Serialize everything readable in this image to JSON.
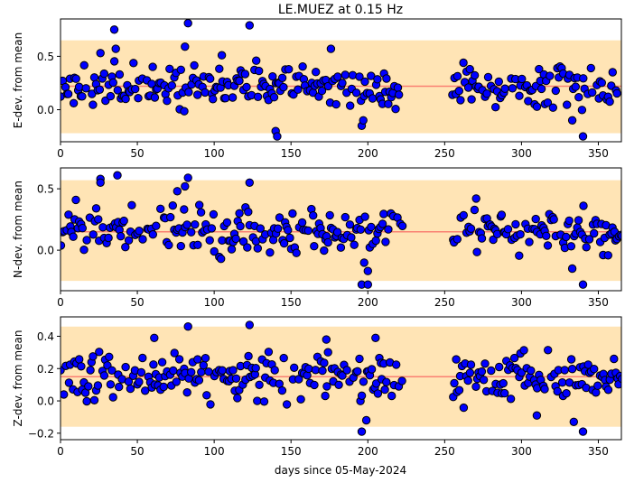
{
  "figure": {
    "title": "LE.MUEZ at 0.15 Hz",
    "xlabel": "days since 05-May-2024"
  },
  "colors": {
    "band": "#ffe4b5",
    "mean_line": "#fa8072",
    "point_fill": "#0000ff",
    "point_edge": "#000000"
  },
  "chart_data": [
    {
      "type": "scatter",
      "ylabel": "E-dev. from mean",
      "xlim": [
        0,
        365
      ],
      "ylim": [
        -0.3,
        0.85
      ],
      "xticks": [
        0,
        50,
        100,
        150,
        200,
        250,
        300,
        350
      ],
      "yticks": [
        0.0,
        0.5
      ],
      "ytick_labels": [
        "0.0",
        "0.5"
      ],
      "mean": 0.22,
      "band": [
        -0.22,
        0.65
      ],
      "seed": 11,
      "spread": 0.14,
      "outliers": [
        {
          "x": 35,
          "y": 0.75
        },
        {
          "x": 83,
          "y": 0.81
        },
        {
          "x": 123,
          "y": 0.79
        },
        {
          "x": 81,
          "y": 0.59
        },
        {
          "x": 36,
          "y": 0.57
        },
        {
          "x": 176,
          "y": 0.57
        },
        {
          "x": 105,
          "y": 0.51
        },
        {
          "x": 26,
          "y": 0.53
        },
        {
          "x": 140,
          "y": -0.2
        },
        {
          "x": 141,
          "y": -0.25
        },
        {
          "x": 196,
          "y": -0.15
        },
        {
          "x": 197,
          "y": -0.1
        },
        {
          "x": 340,
          "y": -0.25
        },
        {
          "x": 333,
          "y": -0.1
        }
      ]
    },
    {
      "type": "scatter",
      "ylabel": "N-dev. from mean",
      "xlim": [
        0,
        365
      ],
      "ylim": [
        -0.33,
        0.67
      ],
      "xticks": [
        0,
        50,
        100,
        150,
        200,
        250,
        300,
        350
      ],
      "yticks": [
        0.0,
        0.5
      ],
      "ytick_labels": [
        "0.0",
        "0.5"
      ],
      "mean": 0.15,
      "band": [
        -0.25,
        0.57
      ],
      "seed": 23,
      "spread": 0.12,
      "outliers": [
        {
          "x": 26,
          "y": 0.58
        },
        {
          "x": 26,
          "y": 0.55
        },
        {
          "x": 37,
          "y": 0.61
        },
        {
          "x": 83,
          "y": 0.59
        },
        {
          "x": 81,
          "y": 0.52
        },
        {
          "x": 123,
          "y": 0.55
        },
        {
          "x": 76,
          "y": 0.48
        },
        {
          "x": 10,
          "y": 0.41
        },
        {
          "x": 196,
          "y": -0.28
        },
        {
          "x": 200,
          "y": -0.28
        },
        {
          "x": 340,
          "y": -0.28
        },
        {
          "x": 333,
          "y": -0.15
        },
        {
          "x": 200,
          "y": -0.17
        }
      ]
    },
    {
      "type": "scatter",
      "ylabel": "Z-dev. from mean",
      "xlim": [
        0,
        365
      ],
      "ylim": [
        -0.24,
        0.52
      ],
      "xticks": [
        0,
        50,
        100,
        150,
        200,
        250,
        300,
        350
      ],
      "yticks": [
        -0.2,
        0.0,
        0.2,
        0.4
      ],
      "ytick_labels": [
        "−0.2",
        "0.0",
        "0.2",
        "0.4"
      ],
      "mean": 0.15,
      "band": [
        -0.16,
        0.46
      ],
      "seed": 37,
      "spread": 0.1,
      "outliers": [
        {
          "x": 83,
          "y": 0.46
        },
        {
          "x": 123,
          "y": 0.47
        },
        {
          "x": 61,
          "y": 0.39
        },
        {
          "x": 173,
          "y": 0.38
        },
        {
          "x": 205,
          "y": 0.39
        },
        {
          "x": 196,
          "y": -0.19
        },
        {
          "x": 340,
          "y": -0.19
        },
        {
          "x": 334,
          "y": -0.13
        },
        {
          "x": 199,
          "y": -0.12
        },
        {
          "x": 310,
          "y": -0.09
        }
      ]
    }
  ]
}
